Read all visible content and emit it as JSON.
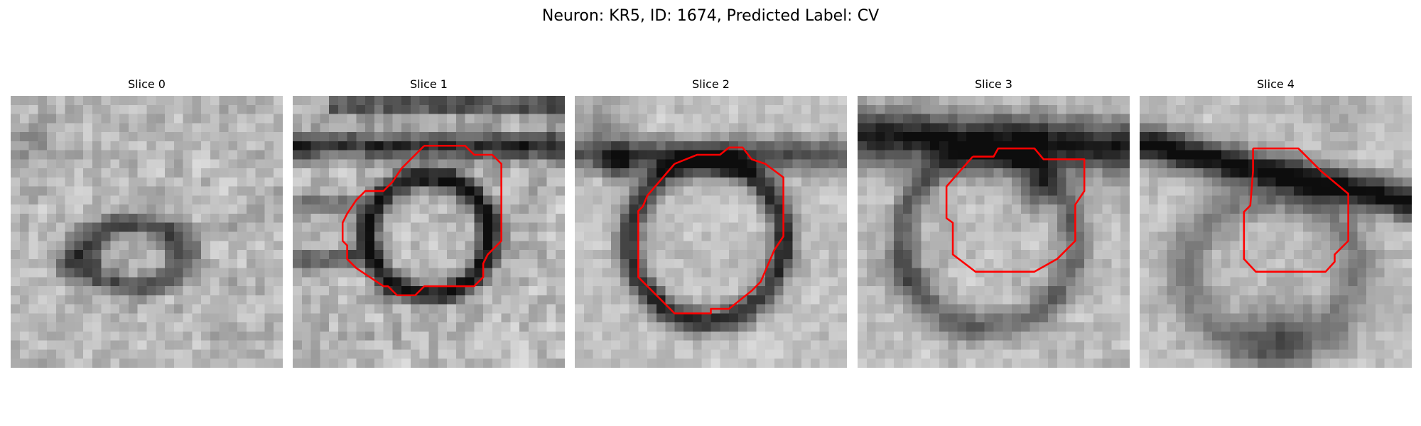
{
  "figure": {
    "title": "Neuron: KR5, ID: 1674, Predicted Label: CV"
  },
  "colors": {
    "outline": "#ff0000",
    "background": "#ffffff"
  },
  "panels": [
    {
      "title": "Slice 0",
      "has_outline": false
    },
    {
      "title": "Slice 1",
      "has_outline": true
    },
    {
      "title": "Slice 2",
      "has_outline": true
    },
    {
      "title": "Slice 3",
      "has_outline": true
    },
    {
      "title": "Slice 4",
      "has_outline": true
    }
  ]
}
